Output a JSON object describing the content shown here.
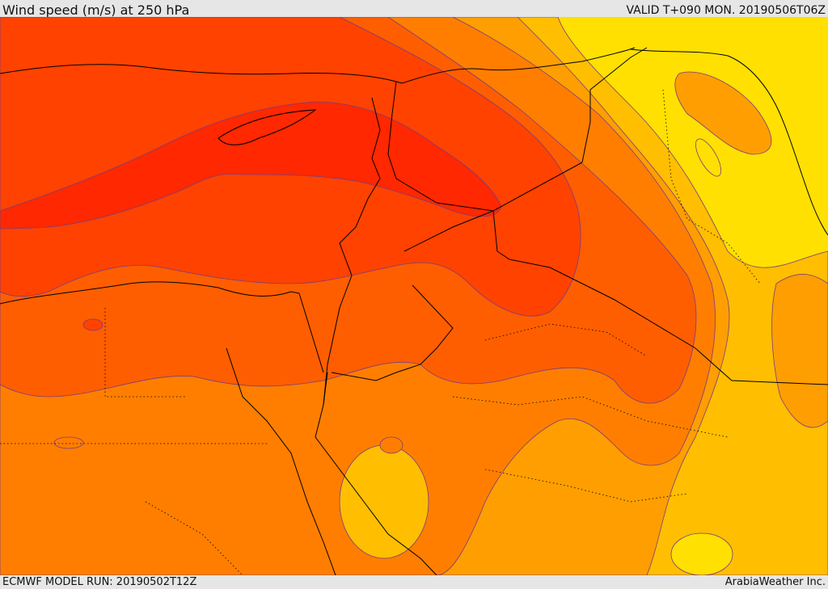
{
  "header": {
    "title": "Wind speed (m/s) at 250 hPa",
    "valid": "VALID T+090 MON. 20190506T06Z"
  },
  "footer": {
    "model_run": "ECMWF MODEL RUN: 20190502T12Z",
    "credit": "ArabiaWeather Inc."
  },
  "map": {
    "colors": {
      "band_lightest": "#ffe000",
      "band_light": "#ffbe00",
      "band_mid": "#ff9e00",
      "band_orange": "#ff7e00",
      "band_deep_orange": "#ff5e00",
      "band_red_orange": "#ff4200",
      "band_red": "#ff2800",
      "contour_line": "#7a3c80",
      "border_line": "#000000"
    }
  }
}
